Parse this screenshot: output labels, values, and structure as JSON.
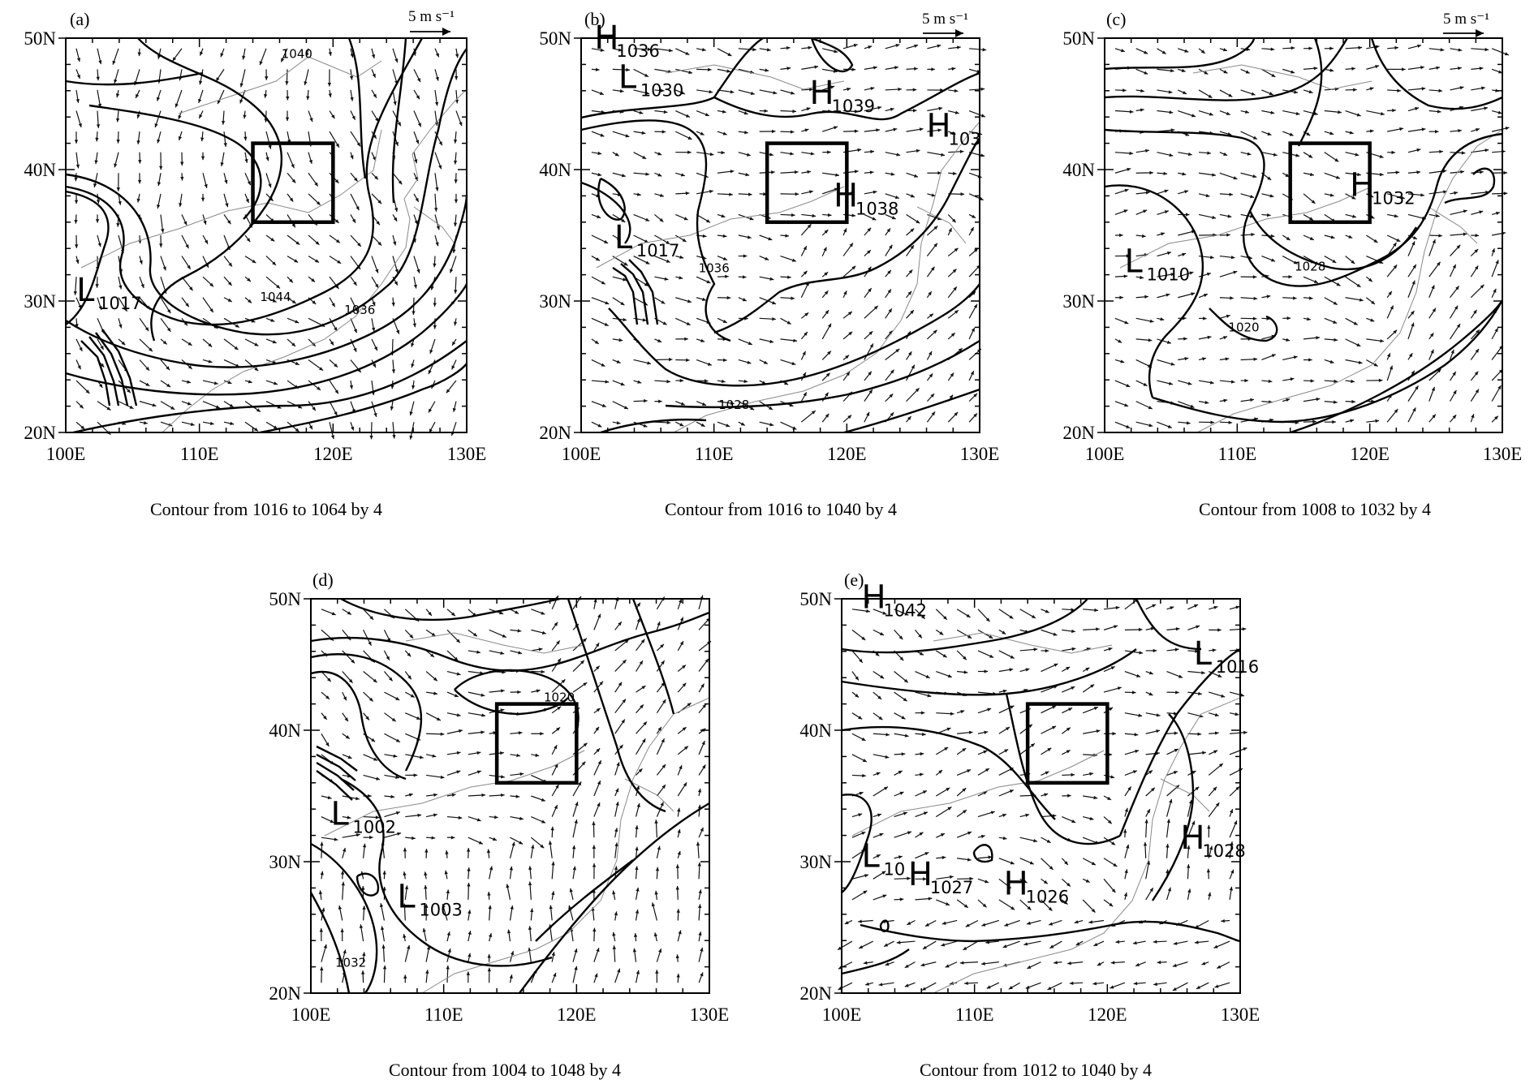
{
  "figure": {
    "panels": [
      {
        "label": "(a)",
        "caption": "Contour from 1016 to 1064 by 4",
        "scale_label": "5 m s⁻¹",
        "centers": [
          {
            "type": "L",
            "value": "1017",
            "lon": 100.8,
            "lat": 30.0
          }
        ],
        "contour_labels": [
          {
            "text": "1040",
            "lon": 117.3,
            "lat": 48.5
          },
          {
            "text": "1044",
            "lon": 115.7,
            "lat": 30.0
          },
          {
            "text": "1036",
            "lon": 122.0,
            "lat": 29.0
          }
        ]
      },
      {
        "label": "(b)",
        "caption": "Contour from 1016 to 1040 by 4",
        "scale_label": "5 m s⁻¹",
        "centers": [
          {
            "type": "H",
            "value": "1036",
            "lon": 101.0,
            "lat": 49.2
          },
          {
            "type": "L",
            "value": "1030",
            "lon": 102.8,
            "lat": 46.2
          },
          {
            "type": "H",
            "value": "1039",
            "lon": 117.2,
            "lat": 45.0
          },
          {
            "type": "H",
            "value": "103",
            "lon": 126.0,
            "lat": 42.5
          },
          {
            "type": "H",
            "value": "1038",
            "lon": 119.0,
            "lat": 37.2
          },
          {
            "type": "L",
            "value": "1017",
            "lon": 102.5,
            "lat": 34.0
          }
        ],
        "contour_labels": [
          {
            "text": "1036",
            "lon": 110.0,
            "lat": 32.2
          },
          {
            "text": "1028",
            "lon": 111.5,
            "lat": 21.8
          }
        ]
      },
      {
        "label": "(c)",
        "caption": "Contour from 1008 to 1032 by 4",
        "scale_label": "5 m s⁻¹",
        "centers": [
          {
            "type": "H",
            "value": "1032",
            "lon": 118.5,
            "lat": 38.0
          },
          {
            "type": "L",
            "value": "1010",
            "lon": 101.5,
            "lat": 32.2
          }
        ],
        "contour_labels": [
          {
            "text": "1028",
            "lon": 115.5,
            "lat": 32.3
          },
          {
            "text": "1020",
            "lon": 110.5,
            "lat": 27.7
          }
        ]
      },
      {
        "label": "(d)",
        "caption": "Contour from 1004 to 1048 by 4",
        "scale_label": "",
        "centers": [
          {
            "type": "L",
            "value": "1002",
            "lon": 101.5,
            "lat": 32.8
          },
          {
            "type": "L",
            "value": "1003",
            "lon": 106.5,
            "lat": 26.5
          }
        ],
        "contour_labels": [
          {
            "text": "1020",
            "lon": 118.7,
            "lat": 42.2
          },
          {
            "text": "1032",
            "lon": 103.0,
            "lat": 22.0
          }
        ]
      },
      {
        "label": "(e)",
        "caption": "Contour from 1012 to 1040 by 4",
        "scale_label": "",
        "centers": [
          {
            "type": "H",
            "value": "1042",
            "lon": 101.5,
            "lat": 49.3
          },
          {
            "type": "L",
            "value": "1016",
            "lon": 126.5,
            "lat": 45.0
          },
          {
            "type": "L",
            "value": "10",
            "lon": 101.5,
            "lat": 29.6
          },
          {
            "type": "H",
            "value": "1027",
            "lon": 105.0,
            "lat": 28.2
          },
          {
            "type": "H",
            "value": "1026",
            "lon": 112.2,
            "lat": 27.5
          },
          {
            "type": "H",
            "value": "1028",
            "lon": 125.5,
            "lat": 31.0
          }
        ],
        "contour_labels": []
      }
    ],
    "lon_ticks": [
      "100E",
      "110E",
      "120E",
      "130E"
    ],
    "lat_ticks": [
      "20N",
      "30N",
      "40N",
      "50N"
    ],
    "lon_range": [
      100,
      130
    ],
    "lat_range": [
      20,
      50
    ],
    "study_box": {
      "lon": [
        114,
        120
      ],
      "lat": [
        36,
        42
      ]
    }
  }
}
